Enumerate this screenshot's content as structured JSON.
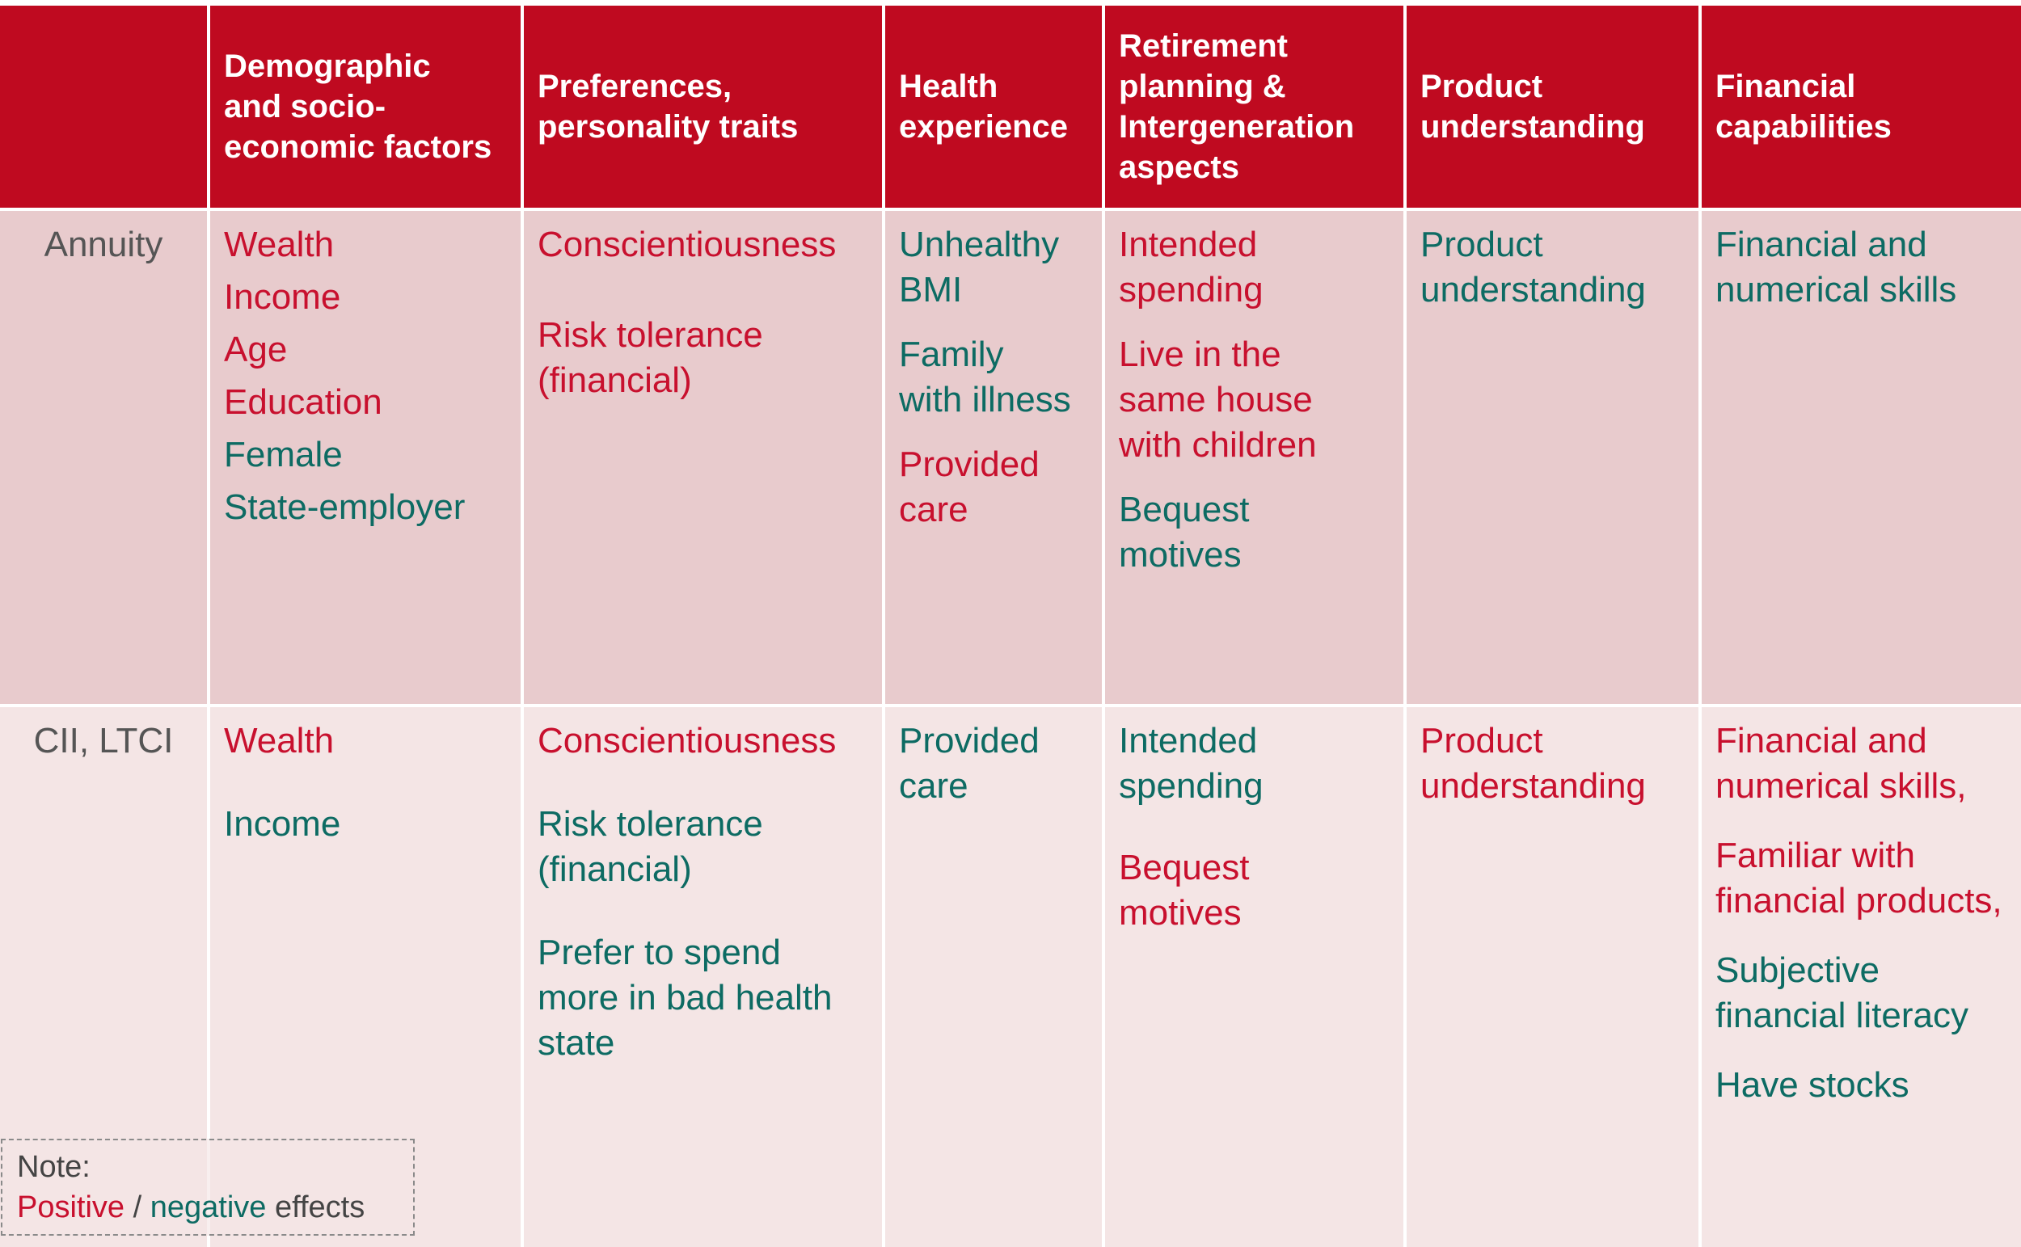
{
  "header": {
    "corner": "",
    "columns": [
      "Demographic\nand socio-\neconomic factors",
      "Preferences,\npersonality traits",
      "Health\nexperience",
      "Retirement\nplanning &\nIntergeneration\naspects",
      "Product\nunderstanding",
      "Financial\ncapabilities"
    ]
  },
  "rows": [
    {
      "label": "Annuity",
      "cells": [
        [
          {
            "text": "Wealth",
            "effect": "positive"
          },
          {
            "text": "Income",
            "effect": "positive"
          },
          {
            "text": "Age",
            "effect": "positive"
          },
          {
            "text": "Education",
            "effect": "positive"
          },
          {
            "text": "Female",
            "effect": "negative"
          },
          {
            "text": "State-employer",
            "effect": "negative"
          }
        ],
        [
          {
            "text": "Conscientiousness",
            "effect": "positive"
          },
          {
            "text": "Risk tolerance\n(financial)",
            "effect": "positive"
          }
        ],
        [
          {
            "text": "Unhealthy\nBMI",
            "effect": "negative"
          },
          {
            "text": "Family\nwith illness",
            "effect": "negative"
          },
          {
            "text": "Provided\ncare",
            "effect": "positive"
          }
        ],
        [
          {
            "text": "Intended\nspending",
            "effect": "positive"
          },
          {
            "text": "Live in the\nsame house\nwith children",
            "effect": "positive"
          },
          {
            "text": "Bequest\nmotives",
            "effect": "negative"
          }
        ],
        [
          {
            "text": "Product\nunderstanding",
            "effect": "negative"
          }
        ],
        [
          {
            "text": "Financial and\nnumerical skills",
            "effect": "negative"
          }
        ]
      ]
    },
    {
      "label": "CII, LTCI",
      "cells": [
        [
          {
            "text": "Wealth",
            "effect": "positive"
          },
          {
            "text": "Income",
            "effect": "negative"
          }
        ],
        [
          {
            "text": "Conscientiousness",
            "effect": "positive"
          },
          {
            "text": "Risk tolerance\n(financial)",
            "effect": "negative"
          },
          {
            "text": "Prefer to spend\nmore in bad health\nstate",
            "effect": "negative"
          }
        ],
        [
          {
            "text": "Provided\ncare",
            "effect": "negative"
          }
        ],
        [
          {
            "text": "Intended\nspending",
            "effect": "negative"
          },
          {
            "text": "Bequest\nmotives",
            "effect": "positive"
          }
        ],
        [
          {
            "text": "Product\nunderstanding",
            "effect": "positive"
          }
        ],
        [
          {
            "text": "Financial and\nnumerical skills,",
            "effect": "positive"
          },
          {
            "text": "Familiar with\nfinancial products,",
            "effect": "positive"
          },
          {
            "text": "Subjective\nfinancial literacy",
            "effect": "negative"
          },
          {
            "text": "Have stocks",
            "effect": "negative"
          }
        ]
      ]
    }
  ],
  "note": {
    "title": "Note:",
    "positive": "Positive",
    "separator": " / ",
    "negative": "negative",
    "suffix": " effects"
  },
  "colors": {
    "header_bg": "#bf0a20",
    "row1_bg": "#e8cbcd",
    "row2_bg": "#f4e5e5",
    "positive": "#c8102e",
    "negative": "#0d6b63",
    "label": "#555555"
  }
}
